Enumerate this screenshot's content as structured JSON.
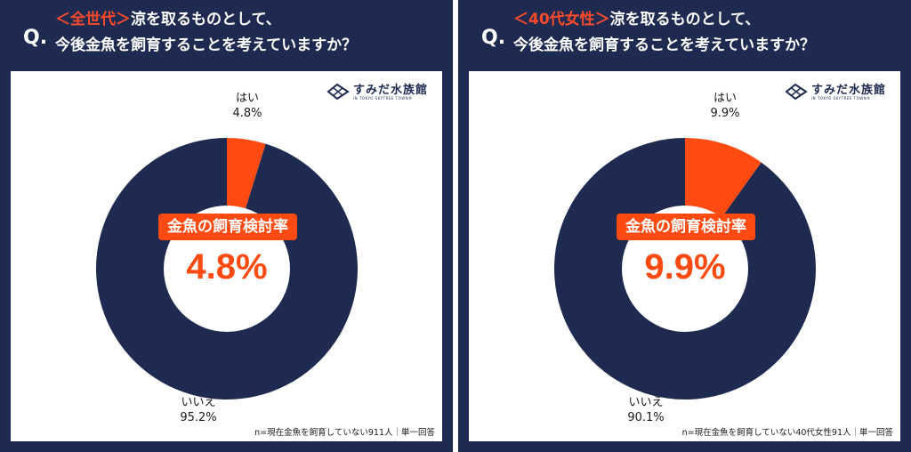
{
  "panels": [
    {
      "q_mark": "Q.",
      "title_accent": "＜全世代＞",
      "title_line1": "涼を取るものとして、",
      "title_line2": "今後金魚を飼育することを考えていますか？",
      "logo_text": "すみだ水族館",
      "logo_sub": "IN TOKYO SKYTREE TOWN®",
      "center_badge": "金魚の飼育検討率",
      "center_value": "4.8%",
      "yes_label": "はい",
      "yes_value": "4.8%",
      "no_label": "いいえ",
      "no_value": "95.2%",
      "note": "n=現在金魚を飼育していない911人｜単一回答"
    },
    {
      "q_mark": "Q.",
      "title_accent": "＜40代女性＞",
      "title_line1": "涼を取るものとして、",
      "title_line2": "今後金魚を飼育することを考えていますか？",
      "logo_text": "すみだ水族館",
      "logo_sub": "IN TOKYO SKYTREE TOWN®",
      "center_badge": "金魚の飼育検討率",
      "center_value": "9.9%",
      "yes_label": "はい",
      "yes_value": "9.9%",
      "no_label": "いいえ",
      "no_value": "90.1%",
      "note": "n=現在金魚を飼育していない40代女性91人｜単一回答"
    }
  ],
  "colors": {
    "navy": "#1e2a4f",
    "accent": "#ff4a12",
    "white": "#ffffff"
  },
  "chart_data": [
    {
      "type": "pie",
      "donut": true,
      "categories": [
        "はい",
        "いいえ"
      ],
      "values": [
        4.8,
        95.2
      ],
      "colors": [
        "#ff4a12",
        "#1e2a4f"
      ]
    },
    {
      "type": "pie",
      "donut": true,
      "categories": [
        "はい",
        "いいえ"
      ],
      "values": [
        9.9,
        90.1
      ],
      "colors": [
        "#ff4a12",
        "#1e2a4f"
      ]
    }
  ]
}
